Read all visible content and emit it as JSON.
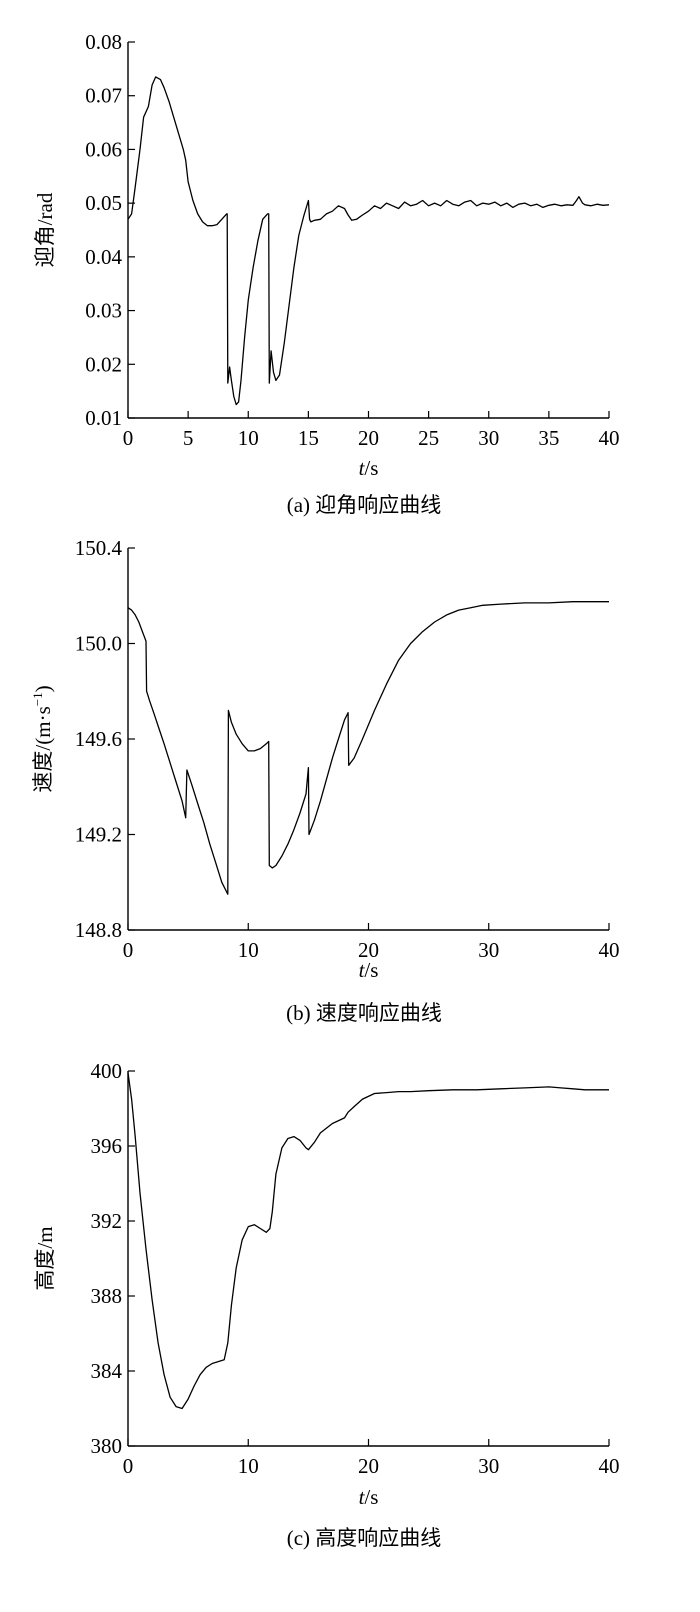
{
  "chart_data": [
    {
      "type": "line",
      "caption": "(a) 迎角响应曲线",
      "xlabel_var": "t",
      "xlabel_unit": "/s",
      "ylabel": "迎角/rad",
      "xlim": [
        0,
        40
      ],
      "ylim": [
        0.01,
        0.08
      ],
      "xticks": [
        "0",
        "5",
        "10",
        "15",
        "20",
        "25",
        "30",
        "35",
        "40"
      ],
      "yticks": [
        "0.01",
        "0.02",
        "0.03",
        "0.04",
        "0.05",
        "0.06",
        "0.07",
        "0.08"
      ],
      "series": [
        {
          "x": [
            0,
            0.3,
            0.6,
            1.0,
            1.3,
            1.7,
            2.0,
            2.3,
            2.7,
            3.0,
            3.4,
            3.8,
            4.2,
            4.6,
            4.8,
            5.0,
            5.4,
            5.8,
            6.2,
            6.6,
            7.0,
            7.4,
            7.8,
            8.2,
            8.25,
            8.3,
            8.45,
            8.6,
            8.8,
            9.0,
            9.2,
            9.4,
            9.7,
            10.0,
            10.4,
            10.8,
            11.2,
            11.6,
            11.7,
            11.75,
            11.9,
            12.1,
            12.3,
            12.6,
            13.0,
            13.4,
            13.8,
            14.2,
            14.6,
            15.0,
            15.1,
            15.2,
            15.5,
            16.0,
            16.5,
            17.0,
            17.5,
            18.0,
            18.3,
            18.6,
            19.0,
            19.5,
            20.0,
            20.5,
            21.0,
            21.5,
            22.0,
            22.5,
            23.0,
            23.5,
            24.0,
            24.5,
            25.0,
            25.5,
            26.0,
            26.5,
            27.0,
            27.5,
            28.0,
            28.5,
            29.0,
            29.5,
            30.0,
            30.5,
            31.0,
            31.5,
            32.0,
            32.5,
            33.0,
            33.5,
            34.0,
            34.5,
            35.0,
            35.5,
            36.0,
            36.5,
            37.0,
            37.3,
            37.5,
            37.8,
            38.0,
            38.5,
            39.0,
            39.5,
            40.0
          ],
          "y": [
            0.047,
            0.048,
            0.053,
            0.06,
            0.066,
            0.068,
            0.072,
            0.0735,
            0.073,
            0.0715,
            0.069,
            0.066,
            0.063,
            0.06,
            0.058,
            0.054,
            0.0505,
            0.048,
            0.0465,
            0.0458,
            0.0458,
            0.046,
            0.047,
            0.048,
            0.048,
            0.0165,
            0.0195,
            0.017,
            0.014,
            0.0125,
            0.013,
            0.017,
            0.025,
            0.032,
            0.038,
            0.043,
            0.047,
            0.048,
            0.048,
            0.0165,
            0.0225,
            0.0185,
            0.017,
            0.018,
            0.024,
            0.031,
            0.038,
            0.044,
            0.0475,
            0.0505,
            0.047,
            0.0465,
            0.0468,
            0.047,
            0.048,
            0.0485,
            0.0495,
            0.049,
            0.0478,
            0.0468,
            0.047,
            0.0478,
            0.0485,
            0.0495,
            0.049,
            0.05,
            0.0495,
            0.049,
            0.0502,
            0.0495,
            0.0498,
            0.0505,
            0.0495,
            0.05,
            0.0495,
            0.0505,
            0.0498,
            0.0495,
            0.0502,
            0.0505,
            0.0495,
            0.05,
            0.0498,
            0.0502,
            0.0495,
            0.05,
            0.0492,
            0.0498,
            0.05,
            0.0495,
            0.0498,
            0.0492,
            0.0496,
            0.0498,
            0.0495,
            0.0497,
            0.0496,
            0.0505,
            0.0512,
            0.05,
            0.0497,
            0.0495,
            0.0498,
            0.0496,
            0.0497
          ]
        }
      ]
    },
    {
      "type": "line",
      "caption": "(b) 速度响应曲线",
      "xlabel_var": "t",
      "xlabel_unit": "/s",
      "ylabel_main": "速度/(m·s",
      "ylabel_sup": "−1",
      "ylabel_close": ")",
      "xlim": [
        0,
        40
      ],
      "ylim": [
        148.8,
        150.4
      ],
      "xticks": [
        "0",
        "10",
        "20",
        "30",
        "40"
      ],
      "yticks": [
        "148.8",
        "149.2",
        "149.6",
        "150.0",
        "150.4"
      ],
      "series": [
        {
          "x": [
            0,
            0.3,
            0.6,
            0.9,
            1.2,
            1.5,
            1.55,
            1.8,
            2.2,
            2.6,
            3.0,
            3.5,
            4.0,
            4.5,
            4.8,
            4.9,
            5.3,
            5.8,
            6.3,
            6.8,
            7.3,
            7.8,
            8.3,
            8.35,
            8.6,
            9.0,
            9.5,
            10.0,
            10.5,
            11.0,
            11.5,
            11.7,
            11.75,
            12.0,
            12.3,
            12.8,
            13.3,
            13.8,
            14.3,
            14.8,
            15.0,
            15.05,
            15.5,
            16.0,
            16.5,
            17.0,
            17.5,
            18.0,
            18.3,
            18.35,
            18.8,
            19.5,
            20.5,
            21.5,
            22.5,
            23.5,
            24.5,
            25.5,
            26.5,
            27.5,
            28.5,
            29.5,
            31.0,
            33.0,
            35.0,
            37.0,
            40.0
          ],
          "y": [
            150.15,
            150.14,
            150.12,
            150.09,
            150.05,
            150.01,
            149.8,
            149.76,
            149.7,
            149.64,
            149.58,
            149.5,
            149.42,
            149.34,
            149.27,
            149.47,
            149.41,
            149.33,
            149.25,
            149.16,
            149.08,
            149.0,
            148.95,
            149.72,
            149.67,
            149.62,
            149.58,
            149.55,
            149.55,
            149.56,
            149.58,
            149.59,
            149.07,
            149.06,
            149.07,
            149.11,
            149.16,
            149.22,
            149.29,
            149.37,
            149.48,
            149.2,
            149.26,
            149.34,
            149.43,
            149.52,
            149.6,
            149.68,
            149.71,
            149.49,
            149.52,
            149.6,
            149.72,
            149.83,
            149.93,
            150.0,
            150.05,
            150.09,
            150.12,
            150.14,
            150.15,
            150.16,
            150.165,
            150.17,
            150.17,
            150.175,
            150.175
          ]
        }
      ]
    },
    {
      "type": "line",
      "caption": "(c) 高度响应曲线",
      "xlabel_var": "t",
      "xlabel_unit": "/s",
      "ylabel": "高度/m",
      "xlim": [
        0,
        40
      ],
      "ylim": [
        380,
        400
      ],
      "xticks": [
        "0",
        "10",
        "20",
        "30",
        "40"
      ],
      "yticks": [
        "380",
        "384",
        "388",
        "392",
        "396",
        "400"
      ],
      "series": [
        {
          "x": [
            0,
            0.3,
            0.6,
            1.0,
            1.5,
            2.0,
            2.5,
            3.0,
            3.5,
            4.0,
            4.5,
            5.0,
            5.5,
            6.0,
            6.5,
            7.0,
            7.5,
            8.0,
            8.3,
            8.6,
            9.0,
            9.5,
            10.0,
            10.5,
            11.0,
            11.5,
            11.8,
            12.0,
            12.3,
            12.8,
            13.3,
            13.8,
            14.3,
            14.8,
            15.0,
            15.5,
            16.0,
            17.0,
            18.0,
            18.3,
            18.8,
            19.5,
            20.5,
            21.5,
            22.5,
            23.5,
            25.0,
            27.0,
            29.0,
            31.0,
            33.0,
            35.0,
            36.0,
            37.0,
            38.0,
            40.0
          ],
          "y": [
            399.9,
            398.5,
            396.5,
            393.5,
            390.5,
            387.8,
            385.5,
            383.8,
            382.6,
            382.1,
            382.0,
            382.5,
            383.2,
            383.8,
            384.2,
            384.4,
            384.5,
            384.6,
            385.5,
            387.5,
            389.5,
            391.0,
            391.7,
            391.8,
            391.6,
            391.4,
            391.6,
            392.5,
            394.5,
            395.9,
            396.4,
            396.5,
            396.3,
            395.9,
            395.8,
            396.2,
            396.7,
            397.2,
            397.5,
            397.8,
            398.1,
            398.5,
            398.8,
            398.85,
            398.9,
            398.9,
            398.95,
            399.0,
            399.0,
            399.05,
            399.1,
            399.15,
            399.1,
            399.05,
            399.0,
            399.0
          ]
        }
      ]
    }
  ]
}
